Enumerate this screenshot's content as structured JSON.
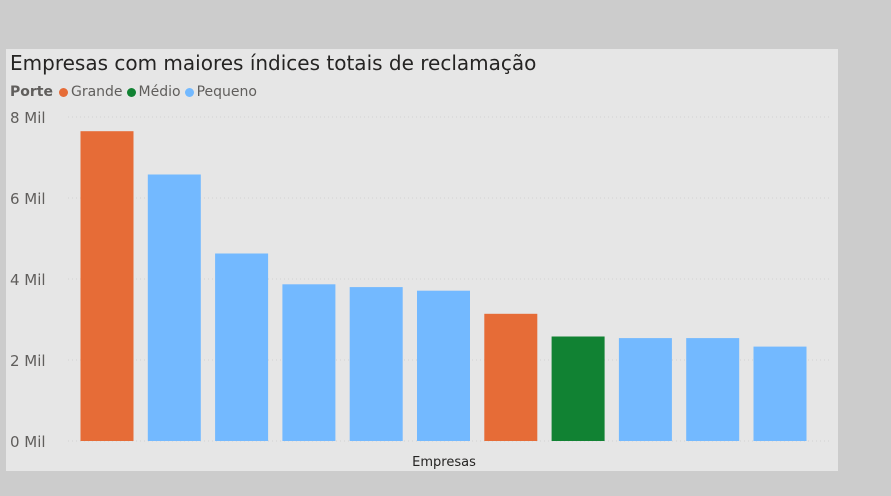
{
  "chart_data": {
    "type": "bar",
    "title": "Empresas com maiores índices totais de reclamação",
    "xlabel": "Empresas",
    "ylabel": "",
    "ylim": [
      0,
      8000
    ],
    "ytick_values": [
      0,
      2000,
      4000,
      6000,
      8000
    ],
    "yticks": [
      "0 Mil",
      "2 Mil",
      "4 Mil",
      "6 Mil",
      "8 Mil"
    ],
    "grid": true,
    "legend_position": "top-left",
    "legend_title": "Porte",
    "legend": [
      {
        "name": "Grande",
        "color": "#e66c37"
      },
      {
        "name": "Médio",
        "color": "#118233"
      },
      {
        "name": "Pequeno",
        "color": "#73b9ff"
      }
    ],
    "values": [
      7650,
      6580,
      4630,
      3870,
      3800,
      3710,
      3140,
      2580,
      2540,
      2540,
      2330
    ],
    "porte": [
      "Grande",
      "Pequeno",
      "Pequeno",
      "Pequeno",
      "Pequeno",
      "Pequeno",
      "Grande",
      "Médio",
      "Pequeno",
      "Pequeno",
      "Pequeno"
    ]
  }
}
